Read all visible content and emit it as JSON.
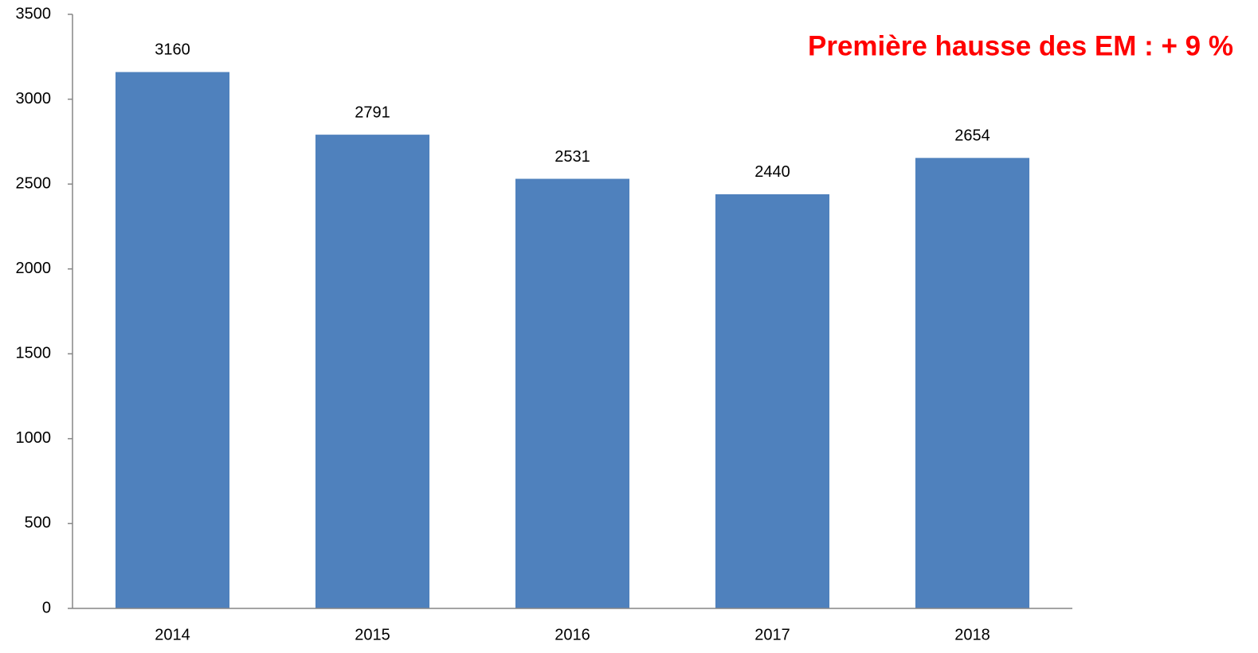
{
  "chart_data": {
    "type": "bar",
    "annotation": "Première hausse des EM : + 9 %",
    "annotation_color": "#ff0000",
    "categories": [
      "2014",
      "2015",
      "2016",
      "2017",
      "2018"
    ],
    "values": [
      3160,
      2791,
      2531,
      2440,
      2654
    ],
    "color": "#4f81bd",
    "ylim": [
      0,
      3500
    ],
    "yticks": [
      0,
      500,
      1000,
      1500,
      2000,
      2500,
      3000,
      3500
    ],
    "grid": false
  }
}
